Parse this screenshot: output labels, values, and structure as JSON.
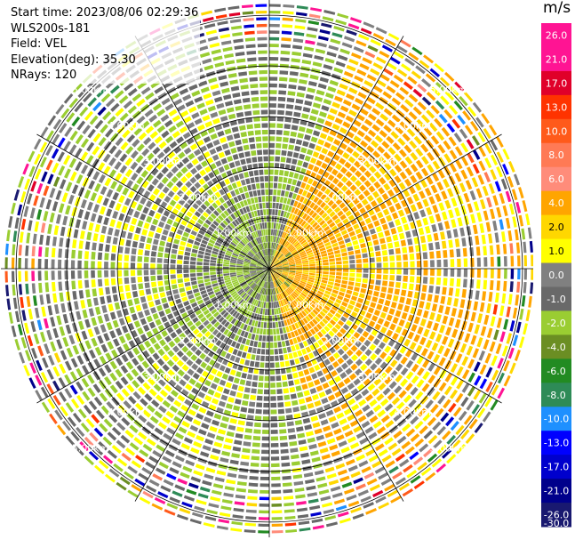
{
  "info": {
    "start_time": "Start time: 2023/08/06 02:29:36",
    "site": "WLS200s-181",
    "field": "Field: VEL",
    "elevation": "Elevation(deg): 35.30",
    "nrays": "NRays: 120"
  },
  "colorbar": {
    "unit": "m/s",
    "ticks": [
      "26.0",
      "21.0",
      "17.0",
      "13.0",
      "10.0",
      "8.0",
      "6.0",
      "4.0",
      "2.0",
      "1.0",
      "0.0",
      "-1.0",
      "-2.0",
      "-4.0",
      "-6.0",
      "-8.0",
      "-10.0",
      "-13.0",
      "-17.0",
      "-21.0",
      "-26.0",
      "-30.0"
    ],
    "colors": [
      "#ff1493",
      "#ff1493",
      "#e0002a",
      "#ff3300",
      "#ff5a1a",
      "#ff7a55",
      "#ff8c7a",
      "#ffa500",
      "#ffd700",
      "#ffff00",
      "#808080",
      "#696969",
      "#9acd32",
      "#6b8e23",
      "#228b22",
      "#2e8b57",
      "#1e90ff",
      "#0000ff",
      "#0000cd",
      "#00008b",
      "#191970",
      "#000060"
    ]
  },
  "chart_data": {
    "type": "heatmap",
    "projection": "polar PPI",
    "field": "VEL",
    "unit": "m/s",
    "nrays": 120,
    "value_range": [
      -30.0,
      26.0
    ],
    "range_rings_km": [
      1.0,
      2.0,
      3.0,
      4.0,
      5.0
    ],
    "range_ring_labels": [
      "1.00km",
      "2.00km",
      "3.00km",
      "4.00km",
      "5.00km"
    ],
    "max_range_km": 5.3,
    "azimuth_spokes_deg": [
      0,
      30,
      60,
      90,
      120,
      150,
      180,
      210,
      240,
      270,
      300,
      330
    ],
    "velocity_regions": [
      {
        "sector_deg": [
          20,
          160
        ],
        "range_km": [
          0.0,
          4.5
        ],
        "dominant_value": 2.0,
        "label": "positive (toward yellow)"
      },
      {
        "sector_deg": [
          160,
          360
        ],
        "range_km": [
          0.0,
          4.5
        ],
        "dominant_value": -2.0,
        "label": "negative (green)"
      },
      {
        "sector_deg": [
          0,
          360
        ],
        "range_km": [
          1.5,
          4.5
        ],
        "dominant_value": 0.0,
        "label": "near zero (gray)"
      },
      {
        "sector_deg": [
          0,
          360
        ],
        "range_km": [
          4.5,
          5.3
        ],
        "dominant_value": 0.0,
        "label": "noisy outer ranges (mixed)"
      }
    ]
  }
}
